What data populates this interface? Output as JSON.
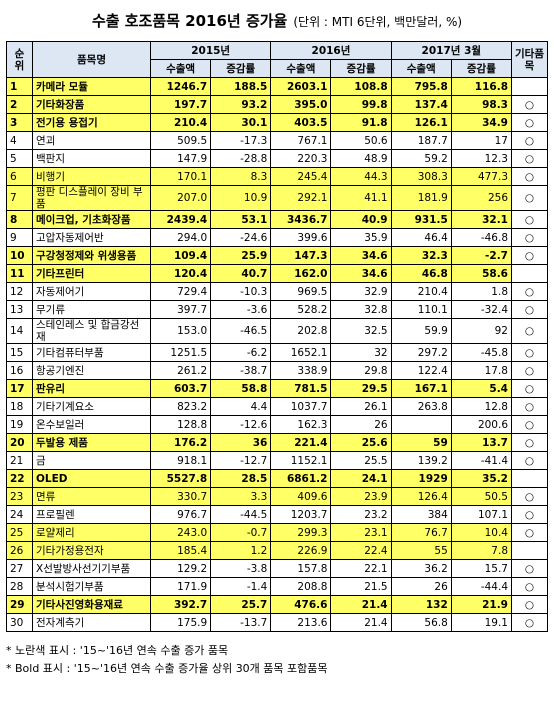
{
  "header": {
    "title": "수출 호조품목 2016년 증가율",
    "unit": "(단위 : MTI 6단위, 백만달러, %)"
  },
  "table": {
    "head": {
      "rank": "순위",
      "name": "품목명",
      "years": [
        "2015년",
        "2016년",
        "2017년 3월"
      ],
      "sub": [
        "수출액",
        "증감률"
      ],
      "other": "기타품목"
    },
    "rows": [
      {
        "cells": [
          "1",
          "카메라 모듈",
          "1246.7",
          "188.5",
          "2603.1",
          "108.8",
          "795.8",
          "116.8",
          null
        ],
        "highlight": true,
        "bold": true
      },
      {
        "cells": [
          "2",
          "기타화장품",
          "197.7",
          "93.2",
          "395.0",
          "99.8",
          "137.4",
          "98.3",
          "○"
        ],
        "highlight": true,
        "bold": true
      },
      {
        "cells": [
          "3",
          "전기용 용접기",
          "210.4",
          "30.1",
          "403.5",
          "91.8",
          "126.1",
          "34.9",
          "○"
        ],
        "highlight": true,
        "bold": true
      },
      {
        "cells": [
          "4",
          "연괴",
          "509.5",
          "-17.3",
          "767.1",
          "50.6",
          "187.7",
          "17",
          "○"
        ],
        "highlight": false,
        "bold": false
      },
      {
        "cells": [
          "5",
          "백판지",
          "147.9",
          "-28.8",
          "220.3",
          "48.9",
          "59.2",
          "12.3",
          "○"
        ],
        "highlight": false,
        "bold": false
      },
      {
        "cells": [
          "6",
          "비행기",
          "170.1",
          "8.3",
          "245.4",
          "44.3",
          "308.3",
          "477.3",
          "○"
        ],
        "highlight": true,
        "bold": false
      },
      {
        "cells": [
          "7",
          "평판 디스플레이 장비 부품",
          "207.0",
          "10.9",
          "292.1",
          "41.1",
          "181.9",
          "256",
          "○"
        ],
        "highlight": true,
        "bold": false
      },
      {
        "cells": [
          "8",
          "메이크업, 기초화장품",
          "2439.4",
          "53.1",
          "3436.7",
          "40.9",
          "931.5",
          "32.1",
          "○"
        ],
        "highlight": true,
        "bold": true
      },
      {
        "cells": [
          "9",
          "고압자동제어반",
          "294.0",
          "-24.6",
          "399.6",
          "35.9",
          "46.4",
          "-46.8",
          "○"
        ],
        "highlight": false,
        "bold": false
      },
      {
        "cells": [
          "10",
          "구강청정제와 위생용품",
          "109.4",
          "25.9",
          "147.3",
          "34.6",
          "32.3",
          "-2.7",
          "○"
        ],
        "highlight": true,
        "bold": true
      },
      {
        "cells": [
          "11",
          "기타프린터",
          "120.4",
          "40.7",
          "162.0",
          "34.6",
          "46.8",
          "58.6",
          null
        ],
        "highlight": true,
        "bold": true
      },
      {
        "cells": [
          "12",
          "자동제어기",
          "729.4",
          "-10.3",
          "969.5",
          "32.9",
          "210.4",
          "1.8",
          "○"
        ],
        "highlight": false,
        "bold": false
      },
      {
        "cells": [
          "13",
          "무기류",
          "397.7",
          "-3.6",
          "528.2",
          "32.8",
          "110.1",
          "-32.4",
          "○"
        ],
        "highlight": false,
        "bold": false
      },
      {
        "cells": [
          "14",
          "스테인레스 및 합금강선재",
          "153.0",
          "-46.5",
          "202.8",
          "32.5",
          "59.9",
          "92",
          "○"
        ],
        "highlight": false,
        "bold": false
      },
      {
        "cells": [
          "15",
          "기타컴퓨터부품",
          "1251.5",
          "-6.2",
          "1652.1",
          "32",
          "297.2",
          "-45.8",
          "○"
        ],
        "highlight": false,
        "bold": false
      },
      {
        "cells": [
          "16",
          "항공기엔진",
          "261.2",
          "-38.7",
          "338.9",
          "29.8",
          "122.4",
          "17.8",
          "○"
        ],
        "highlight": false,
        "bold": false
      },
      {
        "cells": [
          "17",
          "판유리",
          "603.7",
          "58.8",
          "781.5",
          "29.5",
          "167.1",
          "5.4",
          "○"
        ],
        "highlight": true,
        "bold": true
      },
      {
        "cells": [
          "18",
          "기타기계요소",
          "823.2",
          "4.4",
          "1037.7",
          "26.1",
          "263.8",
          "12.8",
          "○"
        ],
        "highlight": false,
        "bold": false
      },
      {
        "cells": [
          "19",
          "온수보일러",
          "128.8",
          "-12.6",
          "162.3",
          "26",
          null,
          "200.6",
          "○"
        ],
        "highlight": false,
        "bold": false
      },
      {
        "cells": [
          "20",
          "두발용 제품",
          "176.2",
          "36",
          "221.4",
          "25.6",
          "59",
          "13.7",
          "○"
        ],
        "highlight": true,
        "bold": true
      },
      {
        "cells": [
          "21",
          "금",
          "918.1",
          "-12.7",
          "1152.1",
          "25.5",
          "139.2",
          "-41.4",
          "○"
        ],
        "highlight": false,
        "bold": false
      },
      {
        "cells": [
          "22",
          "OLED",
          "5527.8",
          "28.5",
          "6861.2",
          "24.1",
          "1929",
          "35.2",
          null
        ],
        "highlight": true,
        "bold": true
      },
      {
        "cells": [
          "23",
          "면류",
          "330.7",
          "3.3",
          "409.6",
          "23.9",
          "126.4",
          "50.5",
          "○"
        ],
        "highlight": true,
        "bold": false
      },
      {
        "cells": [
          "24",
          "프로필렌",
          "976.7",
          "-44.5",
          "1203.7",
          "23.2",
          "384",
          "107.1",
          "○"
        ],
        "highlight": false,
        "bold": false
      },
      {
        "cells": [
          "25",
          "로얄제리",
          "243.0",
          "-0.7",
          "299.3",
          "23.1",
          "76.7",
          "10.4",
          "○"
        ],
        "highlight": true,
        "bold": false
      },
      {
        "cells": [
          "26",
          "기타가정용전자",
          "185.4",
          "1.2",
          "226.9",
          "22.4",
          "55",
          "7.8",
          null
        ],
        "highlight": true,
        "bold": false
      },
      {
        "cells": [
          "27",
          "X선발방사선기기부품",
          "129.2",
          "-3.8",
          "157.8",
          "22.1",
          "36.2",
          "15.7",
          "○"
        ],
        "highlight": false,
        "bold": false
      },
      {
        "cells": [
          "28",
          "분석시험기부품",
          "171.9",
          "-1.4",
          "208.8",
          "21.5",
          "26",
          "-44.4",
          "○"
        ],
        "highlight": false,
        "bold": false
      },
      {
        "cells": [
          "29",
          "기타사진영화용재료",
          "392.7",
          "25.7",
          "476.6",
          "21.4",
          "132",
          "21.9",
          "○"
        ],
        "highlight": true,
        "bold": true
      },
      {
        "cells": [
          "30",
          "전자계측기",
          "175.9",
          "-13.7",
          "213.6",
          "21.4",
          "56.8",
          "19.1",
          "○"
        ],
        "highlight": false,
        "bold": false
      }
    ]
  },
  "notes": [
    "* 노란색 표시 : '15~'16년 연속 수출 증가 품목",
    "* Bold 표시 : '15~'16년 연속 수출 증가율 상위 30개 품목 포함품목"
  ]
}
